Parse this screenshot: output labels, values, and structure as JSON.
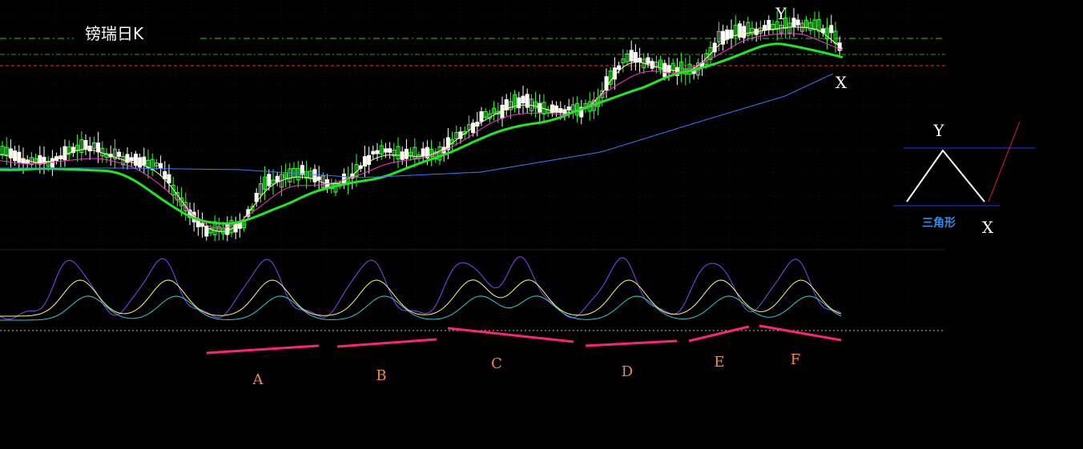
{
  "title": "镑瑞日K",
  "colors": {
    "background": "#000000",
    "up": "#33ff33",
    "down": "#ffffff",
    "ma_thick": "#1ee81e",
    "ma_short": "#ffff99",
    "ma_mid": "#ff33cc",
    "ma_long": "#3a7bff",
    "osc_fast": "#8844ff",
    "osc_mid": "#ffff66",
    "osc_slow": "#33cccc",
    "segment": "#ff2277",
    "segment_label": "#f08a4b",
    "pattern_label": "#2f8df0"
  },
  "price_labels": {
    "peak": "Y",
    "drop": "X"
  },
  "segments": [
    "A",
    "B",
    "C",
    "D",
    "E",
    "F"
  ],
  "pattern": {
    "name": "三角形",
    "top": "Y",
    "break": "X"
  },
  "chart_data": {
    "type": "line",
    "description_series": [
      "MA_thick",
      "MA_short",
      "MA_mid",
      "MA_long",
      "oscillator"
    ],
    "candle_trend": [
      0.55,
      0.6,
      0.55,
      0.5,
      0.45,
      0.4,
      0.35,
      0.3,
      0.28,
      0.35,
      0.42,
      0.48,
      0.55,
      0.6,
      0.66,
      0.72,
      0.78,
      0.84,
      0.88,
      0.93,
      0.97,
      1.0,
      0.98,
      0.95,
      0.9
    ]
  }
}
